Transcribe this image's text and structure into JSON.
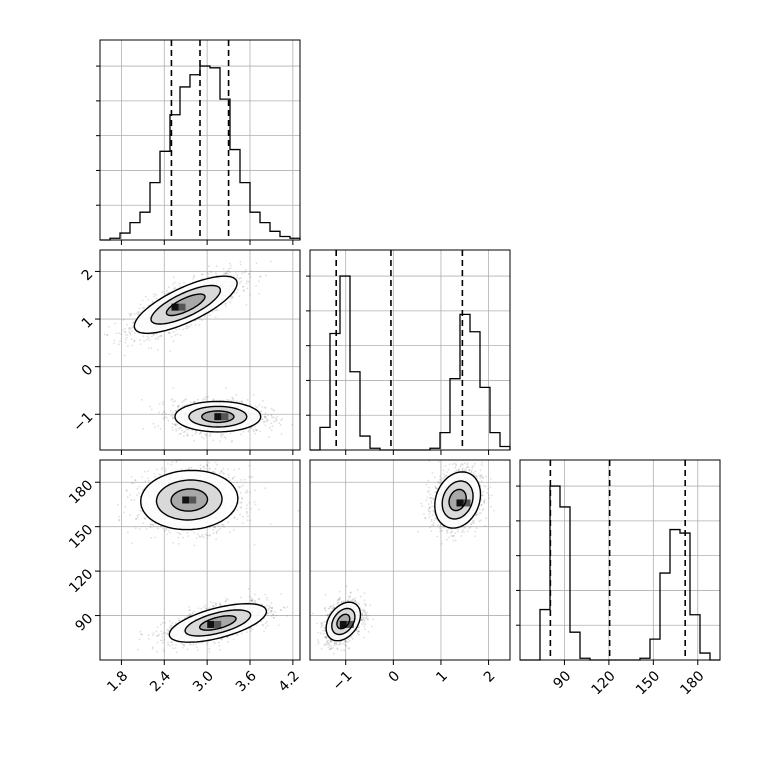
{
  "chart_data": {
    "type": "corner",
    "grid": true,
    "colors": {
      "line": "#000000",
      "grid": "#b0b0b0",
      "density": "#000000",
      "points": "#6e6e6e"
    },
    "parameters": [
      {
        "id": "p1",
        "range": [
          1.5,
          4.3
        ],
        "ticks": [
          "1.8",
          "2.4",
          "3.0",
          "3.6",
          "4.2"
        ],
        "tick_values": [
          1.8,
          2.4,
          3.0,
          3.6,
          4.2
        ],
        "quantiles": [
          2.5,
          2.9,
          3.3
        ],
        "hist_edges_start": 1.5,
        "hist_bin_width": 0.14,
        "hist_counts": [
          0,
          0.01,
          0.04,
          0.1,
          0.16,
          0.33,
          0.51,
          0.72,
          0.88,
          0.95,
          1.0,
          0.99,
          0.81,
          0.52,
          0.33,
          0.16,
          0.1,
          0.05,
          0.02,
          0.01
        ]
      },
      {
        "id": "p2",
        "range": [
          -1.75,
          2.45
        ],
        "ticks": [
          "−1",
          "0",
          "1",
          "2"
        ],
        "tick_values": [
          -1,
          0,
          1,
          2
        ],
        "quantiles": [
          -1.2,
          -0.05,
          1.45
        ],
        "hist_edges_start": -1.75,
        "hist_bin_width": 0.21,
        "hist_counts": [
          0,
          0.13,
          0.67,
          1.0,
          0.45,
          0.08,
          0.01,
          0,
          0,
          0,
          0,
          0,
          0.01,
          0.1,
          0.41,
          0.78,
          0.68,
          0.36,
          0.1,
          0.02
        ]
      },
      {
        "id": "p3",
        "range": [
          60,
          195
        ],
        "ticks": [
          "90",
          "120",
          "150",
          "180"
        ],
        "tick_values": [
          90,
          120,
          150,
          180
        ],
        "quantiles": [
          80.5,
          120.5,
          171.5
        ],
        "hist_edges_start": 60,
        "hist_bin_width": 6.75,
        "hist_counts": [
          0,
          0,
          0.29,
          1.0,
          0.88,
          0.16,
          0.01,
          0,
          0,
          0,
          0,
          0,
          0.01,
          0.12,
          0.5,
          0.75,
          0.73,
          0.26,
          0.04,
          0
        ]
      }
    ],
    "histogram_ylim": [
      0,
      1.15
    ],
    "panels": [
      {
        "x": "p1",
        "y": "p2",
        "clusters": [
          {
            "cx": 2.7,
            "cy": 1.3,
            "sx": 0.36,
            "sy": 0.3,
            "rho": 0.75,
            "peak": [
              2.55,
              1.25
            ]
          },
          {
            "cx": 3.15,
            "cy": -1.05,
            "sx": 0.3,
            "sy": 0.16,
            "rho": 0.0,
            "peak": [
              3.15,
              -1.05
            ]
          }
        ]
      },
      {
        "x": "p1",
        "y": "p3",
        "clusters": [
          {
            "cx": 2.75,
            "cy": 168,
            "sx": 0.34,
            "sy": 10,
            "rho": 0.05,
            "peak": [
              2.7,
              168
            ]
          },
          {
            "cx": 3.15,
            "cy": 85,
            "sx": 0.34,
            "sy": 6.5,
            "rho": 0.6,
            "peak": [
              3.05,
              84
            ]
          }
        ]
      },
      {
        "x": "p2",
        "y": "p3",
        "clusters": [
          {
            "cx": 1.35,
            "cy": 168,
            "sx": 0.24,
            "sy": 9.5,
            "rho": 0.2,
            "peak": [
              1.4,
              166
            ]
          },
          {
            "cx": -1.05,
            "cy": 86,
            "sx": 0.18,
            "sy": 6.5,
            "rho": 0.35,
            "peak": [
              -1.05,
              84
            ]
          }
        ]
      }
    ],
    "contour_levels": [
      0.14,
      0.4,
      0.75
    ]
  }
}
